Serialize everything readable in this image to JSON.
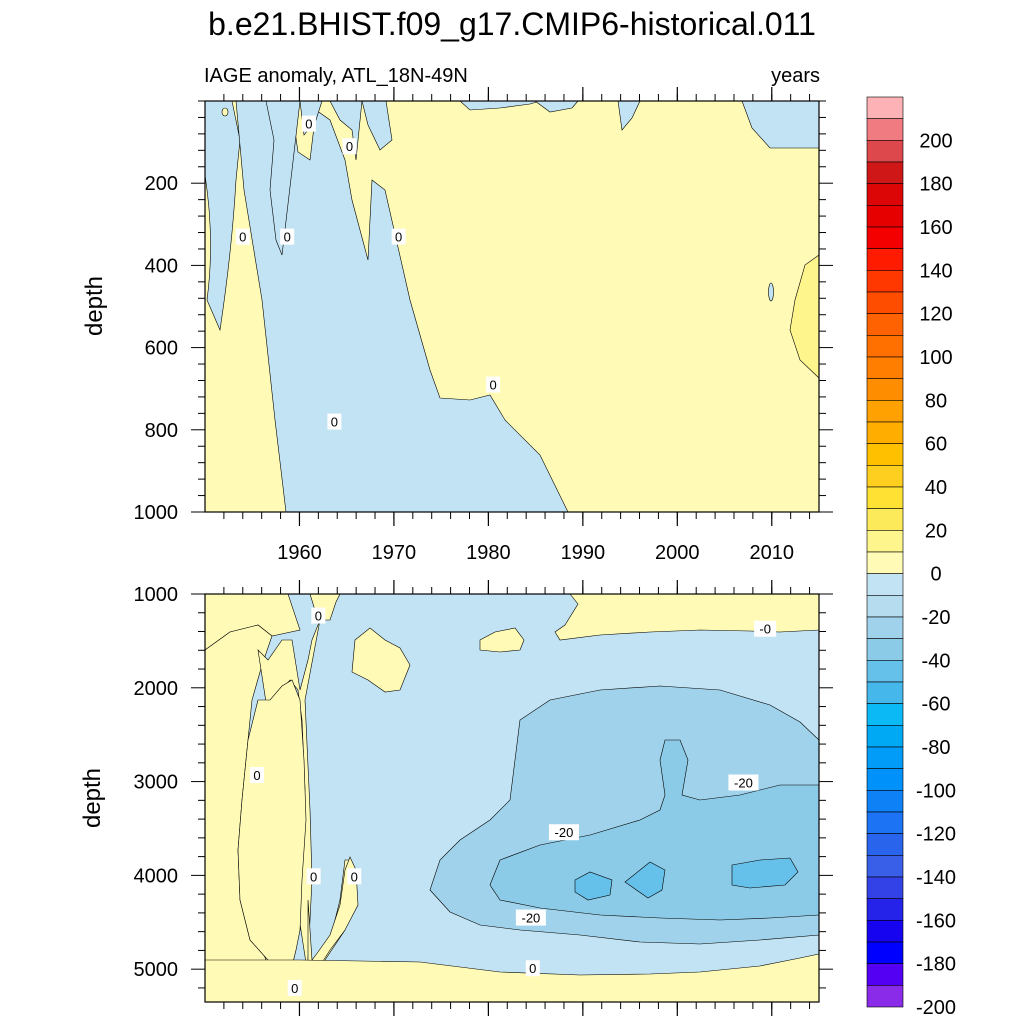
{
  "title": "b.e21.BHIST.f09_g17.CMIP6-historical.011",
  "subtitle_left": "IAGE anomaly, ATL_18N-49N",
  "subtitle_right": "years",
  "chart_data": [
    {
      "type": "heatmap",
      "panel": "upper",
      "ylabel": "depth",
      "xlim": [
        1950,
        2015
      ],
      "ylim": [
        0,
        1000
      ],
      "y_inverted": true,
      "x_ticks": [
        1960,
        1970,
        1980,
        1990,
        2000,
        2010
      ],
      "x_tick_labels": [
        "1960",
        "1970",
        "1980",
        "1990",
        "2000",
        "2010"
      ],
      "y_ticks": [
        200,
        400,
        600,
        800,
        1000
      ],
      "y_tick_labels": [
        "200",
        "400",
        "600",
        "800",
        "1000"
      ],
      "contour_labels": [
        {
          "text": "0",
          "x": 1961,
          "y": 55
        },
        {
          "text": "0",
          "x": 1965.3,
          "y": 110
        },
        {
          "text": "0",
          "x": 1954,
          "y": 330
        },
        {
          "text": "0",
          "x": 1958.7,
          "y": 330
        },
        {
          "text": "0",
          "x": 1970.5,
          "y": 330
        },
        {
          "text": "0",
          "x": 1980.5,
          "y": 690
        },
        {
          "text": "0",
          "x": 1963.7,
          "y": 780
        }
      ]
    },
    {
      "type": "heatmap",
      "panel": "lower",
      "ylabel": "depth",
      "xlim": [
        1950,
        2015
      ],
      "ylim": [
        1000,
        5350
      ],
      "y_inverted": true,
      "y_ticks": [
        1000,
        2000,
        3000,
        4000,
        5000
      ],
      "y_tick_labels": [
        "1000",
        "2000",
        "3000",
        "4000",
        "5000"
      ],
      "contour_labels": [
        {
          "text": "0",
          "x": 1962,
          "y": 1230
        },
        {
          "text": "-0",
          "x": 2009.3,
          "y": 1370
        },
        {
          "text": "0",
          "x": 1955.5,
          "y": 2930
        },
        {
          "text": "-20",
          "x": 2007,
          "y": 3010
        },
        {
          "text": "-20",
          "x": 1988,
          "y": 3540
        },
        {
          "text": "0",
          "x": 1961.5,
          "y": 4010
        },
        {
          "text": "0",
          "x": 1965.8,
          "y": 4010
        },
        {
          "text": "-20",
          "x": 1984.5,
          "y": 4450
        },
        {
          "text": "0",
          "x": 1984.7,
          "y": 4990
        },
        {
          "text": "0",
          "x": 1959.5,
          "y": 5200
        }
      ]
    }
  ],
  "colorbar": {
    "colors": [
      "#fdb2b5",
      "#f07b80",
      "#dd484d",
      "#cf1717",
      "#dd0606",
      "#e70000",
      "#f50000",
      "#ff1b00",
      "#ff3800",
      "#ff4d00",
      "#ff6200",
      "#ff7000",
      "#ff7e00",
      "#ff8d00",
      "#ffa100",
      "#ffae00",
      "#ffc000",
      "#ffcf20",
      "#ffe134",
      "#fdea5a",
      "#fff58d",
      "#fffbb6",
      "#c2e3f3",
      "#b6dcef",
      "#a0d3eb",
      "#8ccbe8",
      "#66c1ea",
      "#45b7ea",
      "#0bbaf5",
      "#00a9f4",
      "#009cf7",
      "#0091fb",
      "#0e81f7",
      "#1c73f3",
      "#2964ed",
      "#395ee7",
      "#3242e6",
      "#2523e9",
      "#1603f0",
      "#0000ff",
      "#5400f2",
      "#8a2be9"
    ],
    "labels": [
      "200",
      "180",
      "160",
      "140",
      "120",
      "100",
      "80",
      "60",
      "40",
      "20",
      "0",
      "-20",
      "-40",
      "-60",
      "-80",
      "-100",
      "-120",
      "-140",
      "-160",
      "-180",
      "-200"
    ]
  },
  "fill_colors": {
    "positive_light": "#fffbb6",
    "positive_mid": "#fff58d",
    "negative_light": "#c2e3f3",
    "negative_mid": "#a0d3eb",
    "negative_deep": "#8ccbe8"
  }
}
